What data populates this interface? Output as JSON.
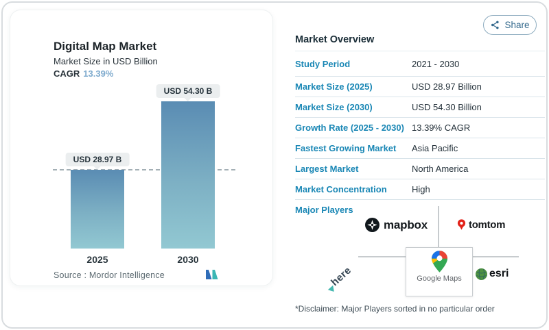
{
  "page": {
    "share": {
      "label": "Share"
    }
  },
  "left_card": {
    "title": "Digital Map Market",
    "subtitle": "Market Size in USD Billion",
    "cagr_label": "CAGR",
    "cagr_value": "13.39%",
    "source_label": "Source :  Mordor Intelligence"
  },
  "chart_data": {
    "type": "bar",
    "categories": [
      "2025",
      "2030"
    ],
    "values": [
      28.97,
      54.3
    ],
    "value_labels": [
      "USD 28.97 B",
      "USD 54.30 B"
    ],
    "title": "Digital Map Market",
    "ylabel": "Market Size in USD Billion",
    "cagr": "13.39%",
    "reference_line": 28.97,
    "grid": false,
    "bar_color_top": "#5a8cb3",
    "bar_color_bottom": "#92c8d2"
  },
  "overview": {
    "title": "Market Overview",
    "rows": [
      {
        "label": "Study Period",
        "value": "2021 - 2030"
      },
      {
        "label": "Market Size (2025)",
        "value": "USD 28.97 Billion"
      },
      {
        "label": "Market Size (2030)",
        "value": "USD 54.30 Billion"
      },
      {
        "label": "Growth Rate (2025 - 2030)",
        "value": "13.39% CAGR"
      },
      {
        "label": "Fastest Growing Market",
        "value": "Asia Pacific"
      },
      {
        "label": "Largest Market",
        "value": "North America"
      },
      {
        "label": "Market Concentration",
        "value": "High"
      }
    ],
    "major_players_label": "Major Players",
    "players": {
      "mapbox": "mapbox",
      "tomtom": "tomtom",
      "here": "here",
      "google": "Google Maps",
      "esri": "esri"
    },
    "disclaimer": "*Disclaimer: Major Players sorted in no particular order"
  },
  "colors": {
    "accent_label_blue": "#1a87b5",
    "cagr_blue": "#7fabce",
    "share_blue": "#33688c",
    "bar_gradient_top": "#5a8cb3",
    "bar_gradient_bottom": "#92c8d2"
  }
}
